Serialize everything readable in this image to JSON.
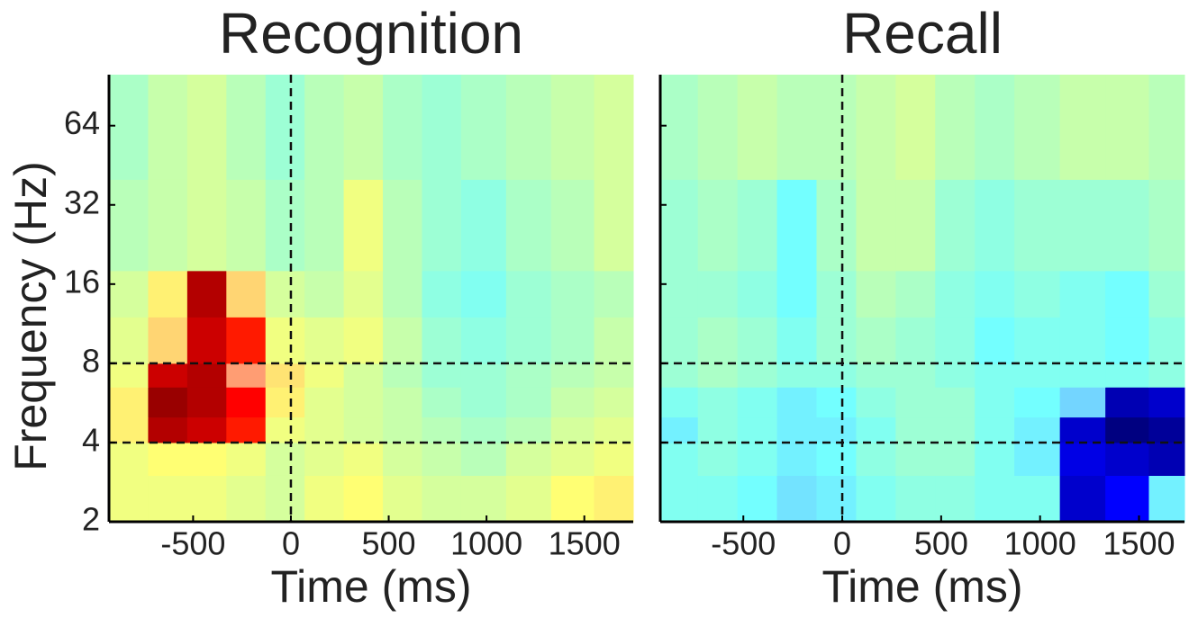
{
  "chart_data": [
    {
      "type": "heatmap",
      "title": "Recognition",
      "xlabel": "Time (ms)",
      "ylabel": "Frequency (Hz)",
      "xlim": [
        -930,
        1750
      ],
      "xticks": [
        -500,
        0,
        500,
        1000,
        1500
      ],
      "ylim": [
        2,
        100
      ],
      "yticks": [
        2,
        4,
        8,
        16,
        32,
        64
      ],
      "ylog": true,
      "show_ytick_labels": true,
      "vlines": [
        0
      ],
      "hlines": [
        4,
        8
      ],
      "x_edges": [
        -930,
        -730,
        -530,
        -330,
        -130,
        70,
        270,
        470,
        670,
        870,
        1100,
        1330,
        1550,
        1750
      ],
      "y_edges": [
        2,
        3,
        4,
        5,
        6.5,
        8,
        12,
        18,
        40,
        100
      ],
      "values": [
        [
          0.2,
          0.2,
          0.2,
          0.15,
          0.1,
          0.2,
          0.25,
          0.15,
          0.1,
          0.1,
          0.15,
          0.25,
          0.3
        ],
        [
          0.2,
          0.25,
          0.25,
          0.2,
          0.1,
          0.15,
          0.2,
          0.1,
          0.05,
          0,
          0.1,
          0.15,
          0.2
        ],
        [
          0.3,
          0.9,
          0.85,
          0.7,
          0.2,
          0.15,
          0.1,
          0.05,
          0,
          -0.05,
          0,
          0.1,
          0.15
        ],
        [
          0.3,
          0.95,
          0.9,
          0.75,
          0.3,
          0.15,
          0.1,
          0.05,
          -0.05,
          -0.1,
          -0.05,
          0.05,
          0.1
        ],
        [
          0.2,
          0.85,
          0.9,
          0.6,
          0.35,
          0.2,
          0.1,
          0,
          -0.1,
          -0.1,
          -0.05,
          0,
          0.05
        ],
        [
          0.15,
          0.4,
          0.85,
          0.7,
          0.2,
          0.15,
          0.2,
          0.05,
          -0.1,
          -0.15,
          -0.1,
          -0.05,
          0.05
        ],
        [
          0.1,
          0.3,
          0.9,
          0.4,
          0.1,
          0.05,
          0.15,
          0,
          -0.15,
          -0.2,
          -0.1,
          -0.05,
          0
        ],
        [
          0,
          0.05,
          0.1,
          0.05,
          -0.05,
          0,
          0.2,
          0,
          -0.1,
          -0.15,
          -0.05,
          0,
          0.1
        ],
        [
          -0.05,
          0.05,
          0.1,
          0,
          -0.1,
          0,
          0.05,
          -0.05,
          -0.1,
          -0.05,
          0,
          0.05,
          0.1
        ]
      ]
    },
    {
      "type": "heatmap",
      "title": "Recall",
      "xlabel": "Time (ms)",
      "xlim": [
        -920,
        1730
      ],
      "xticks": [
        -500,
        0,
        500,
        1000,
        1500
      ],
      "ylim": [
        2,
        100
      ],
      "yticks": [
        2,
        4,
        8,
        16,
        32,
        64
      ],
      "ylog": true,
      "show_ytick_labels": false,
      "vlines": [
        0
      ],
      "hlines": [
        4,
        8
      ],
      "x_edges": [
        -920,
        -730,
        -530,
        -330,
        -130,
        70,
        270,
        470,
        670,
        870,
        1100,
        1330,
        1550,
        1730
      ],
      "y_edges": [
        2,
        3,
        4,
        5,
        6.5,
        8,
        12,
        18,
        40,
        100
      ],
      "values": [
        [
          -0.2,
          -0.2,
          -0.25,
          -0.35,
          -0.3,
          -0.2,
          -0.15,
          -0.15,
          -0.2,
          -0.2,
          -0.85,
          -0.75,
          -0.3
        ],
        [
          -0.2,
          -0.15,
          -0.2,
          -0.3,
          -0.25,
          -0.15,
          -0.1,
          -0.1,
          -0.2,
          -0.3,
          -0.8,
          -0.85,
          -0.9
        ],
        [
          -0.3,
          -0.15,
          -0.2,
          -0.3,
          -0.3,
          -0.2,
          -0.1,
          -0.1,
          -0.2,
          -0.3,
          -0.85,
          -1,
          -0.95
        ],
        [
          -0.2,
          -0.15,
          -0.2,
          -0.3,
          -0.25,
          -0.15,
          -0.1,
          -0.1,
          -0.2,
          -0.25,
          -0.4,
          -0.9,
          -0.85
        ],
        [
          -0.1,
          -0.05,
          -0.1,
          -0.15,
          -0.15,
          -0.1,
          -0.1,
          -0.15,
          -0.2,
          -0.2,
          -0.2,
          -0.2,
          -0.15
        ],
        [
          -0.1,
          -0.05,
          -0.1,
          -0.2,
          -0.1,
          -0.05,
          -0.1,
          -0.15,
          -0.25,
          -0.2,
          -0.2,
          -0.25,
          -0.15
        ],
        [
          -0.1,
          -0.1,
          -0.15,
          -0.25,
          -0.1,
          0,
          -0.05,
          -0.15,
          -0.2,
          -0.15,
          -0.2,
          -0.25,
          -0.1
        ],
        [
          -0.1,
          -0.05,
          -0.1,
          -0.25,
          -0.05,
          0.05,
          0.05,
          -0.1,
          -0.15,
          -0.1,
          -0.1,
          -0.1,
          -0.05
        ],
        [
          -0.05,
          0,
          0.05,
          0,
          0,
          0.05,
          0.1,
          0,
          -0.05,
          0,
          0.05,
          0.05,
          0
        ]
      ]
    }
  ]
}
